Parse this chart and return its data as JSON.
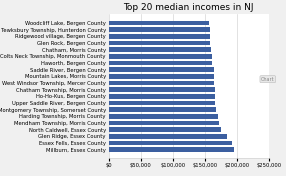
{
  "title": "Top 20 median incomes in NJ",
  "categories": [
    "Woodcliff Lake, Bergen County",
    "Tewksbury Township, Hunterdon County",
    "Ridgewood village, Bergen County",
    "Glen Rock, Bergen County",
    "Chatham, Morris County",
    "Colts Neck Township, Monmouth County",
    "Haworth, Bergen County",
    "Saddle River, Bergen County",
    "Mountain Lakes, Morris County",
    "West Windsor Township, Mercer County",
    "Chatham Township, Morris County",
    "Ho-Ho-Kus, Bergen County",
    "Upper Saddle River, Bergen County",
    "Montgomery Township, Somerset County",
    "Harding Township, Morris County",
    "Mendham Township, Morris County",
    "North Caldwell, Essex County",
    "Glen Ridge, Essex County",
    "Essex Fells, Essex County",
    "Millburn, Essex County"
  ],
  "values": [
    157000,
    157500,
    158000,
    158500,
    159000,
    161000,
    162000,
    164000,
    164500,
    165000,
    165500,
    166000,
    166000,
    168000,
    170000,
    172000,
    175000,
    185000,
    192000,
    195000
  ],
  "bar_color": "#3C5FA0",
  "xlim": [
    0,
    250000
  ],
  "xticks": [
    0,
    50000,
    100000,
    150000,
    200000,
    250000
  ],
  "xtick_labels": [
    "$0",
    "$50,000",
    "$100,000",
    "$150,000",
    "$200,000",
    "$250,000"
  ],
  "title_fontsize": 6.5,
  "label_fontsize": 3.8,
  "tick_fontsize": 3.8,
  "background_color": "#f0f0f0",
  "plot_bg_color": "#ffffff",
  "grid_color": "#cccccc",
  "chart_label": "Chart"
}
